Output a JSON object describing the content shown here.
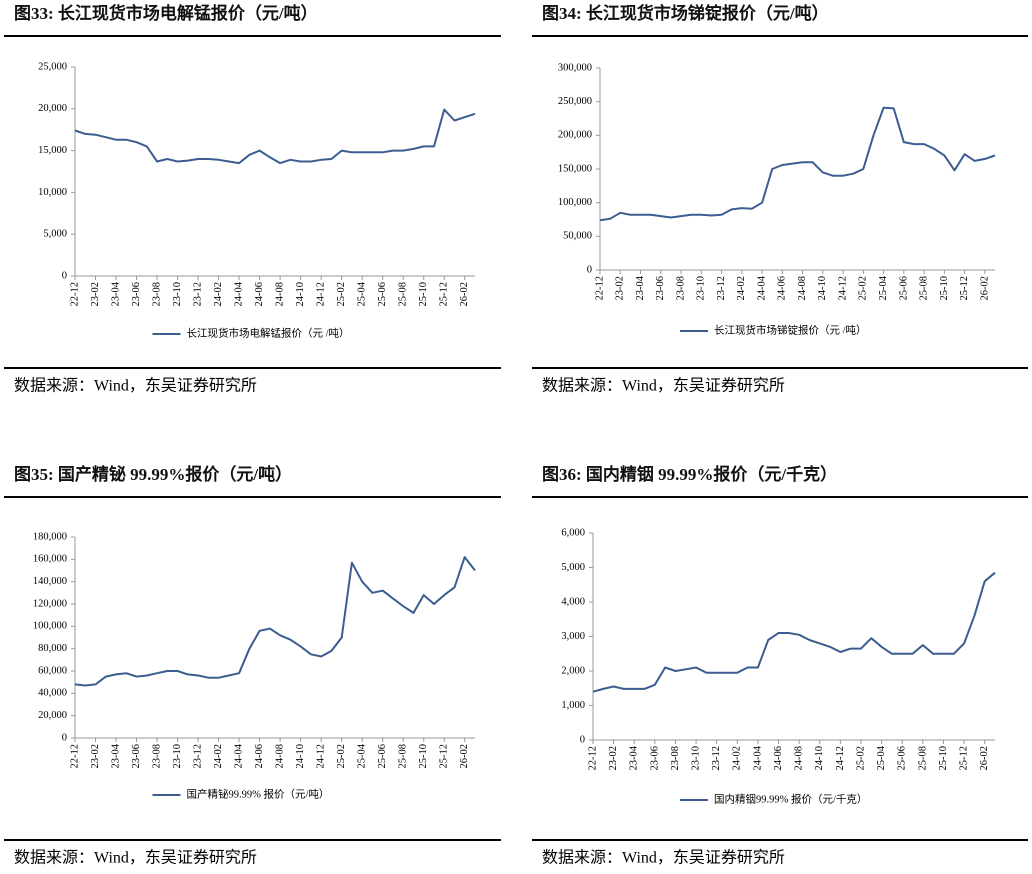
{
  "chart_data": [
    {
      "type": "line",
      "title": "图33:  长江现货市场电解锰报价（元/吨）",
      "source": "数据来源：Wind，东吴证券研究所",
      "categories": [
        "22-12",
        null,
        "23-02",
        null,
        "23-04",
        null,
        "23-06",
        null,
        "23-08",
        null,
        "23-10",
        null,
        "23-12",
        null,
        "24-02",
        null,
        "24-04",
        null,
        "24-06",
        null,
        "24-08",
        null,
        "24-10",
        null,
        "24-12",
        null,
        "25-02",
        null,
        "25-04",
        null,
        "25-06",
        null,
        "25-08",
        null,
        "25-10",
        null,
        "25-12",
        null,
        "26-02",
        null
      ],
      "series": [
        {
          "name": "长江现货市场电解锰报价（元 /吨）",
          "color": "#3b5d8f",
          "values": [
            17400,
            17000,
            16900,
            16600,
            16300,
            16300,
            16000,
            15500,
            13700,
            14000,
            13700,
            13800,
            14000,
            14000,
            13900,
            13700,
            13500,
            14500,
            15000,
            14200,
            13500,
            13900,
            13700,
            13700,
            13900,
            14000,
            15000,
            14800,
            14800,
            14800,
            14800,
            15000,
            15000,
            15200,
            15500,
            15500,
            19900,
            18600,
            19000,
            19400
          ]
        }
      ],
      "ylim": [
        0,
        25000
      ],
      "yticks": [
        0,
        {
          "value": 5000,
          "label": "5,000"
        },
        {
          "value": 10000,
          "label": "10,000"
        },
        {
          "value": 15000,
          "label": "15,000"
        },
        {
          "value": 20000,
          "label": "20,000"
        },
        {
          "value": 25000,
          "label": "25,000"
        }
      ],
      "grid": false,
      "legend": "bottom"
    },
    {
      "type": "line",
      "title": "图34:  长江现货市场锑锭报价（元/吨）",
      "source": "数据来源：Wind，东吴证券研究所",
      "categories": [
        "22-12",
        null,
        "23-02",
        null,
        "23-04",
        null,
        "23-06",
        null,
        "23-08",
        null,
        "23-10",
        null,
        "23-12",
        null,
        "24-02",
        null,
        "24-04",
        null,
        "24-06",
        null,
        "24-08",
        null,
        "24-10",
        null,
        "24-12",
        null,
        "25-02",
        null,
        "25-04",
        null,
        "25-06",
        null,
        "25-08",
        null,
        "25-10",
        null,
        "25-12",
        null,
        "26-02",
        null
      ],
      "series": [
        {
          "name": "长江现货市场锑锭报价（元 /吨）",
          "color": "#3b5d8f",
          "values": [
            74000,
            76000,
            85000,
            82000,
            82000,
            82000,
            80000,
            78000,
            80000,
            82000,
            82000,
            81000,
            82000,
            90000,
            92000,
            91000,
            100000,
            150000,
            156000,
            158000,
            160000,
            160000,
            145000,
            140000,
            140000,
            143000,
            150000,
            200000,
            241000,
            240000,
            190000,
            187000,
            187000,
            180000,
            170000,
            148000,
            172000,
            162000,
            165000,
            170000
          ]
        }
      ],
      "ylim": [
        0,
        300000
      ],
      "yticks": [
        0,
        {
          "value": 50000,
          "label": "50,000"
        },
        {
          "value": 100000,
          "label": "100,000"
        },
        {
          "value": 150000,
          "label": "150,000"
        },
        {
          "value": 200000,
          "label": "200,000"
        },
        {
          "value": 250000,
          "label": "250,000"
        },
        {
          "value": 300000,
          "label": "300,000"
        }
      ],
      "grid": false,
      "legend": "bottom"
    },
    {
      "type": "line",
      "title": "图35:  国产精铋 99.99%报价（元/吨）",
      "source": "数据来源：Wind，东吴证券研究所",
      "categories": [
        "22-12",
        null,
        "23-02",
        null,
        "23-04",
        null,
        "23-06",
        null,
        "23-08",
        null,
        "23-10",
        null,
        "23-12",
        null,
        "24-02",
        null,
        "24-04",
        null,
        "24-06",
        null,
        "24-08",
        null,
        "24-10",
        null,
        "24-12",
        null,
        "25-02",
        null,
        "25-04",
        null,
        "25-06",
        null,
        "25-08",
        null,
        "25-10",
        null,
        "25-12",
        null,
        "26-02",
        null
      ],
      "series": [
        {
          "name": "国产精铋99.99% 报价（元/吨）",
          "color": "#3b5d8f",
          "values": [
            48000,
            47000,
            48000,
            55000,
            57000,
            58000,
            55000,
            56000,
            58000,
            60000,
            60000,
            57000,
            56000,
            54000,
            54000,
            56000,
            58000,
            80000,
            96000,
            98000,
            92000,
            88000,
            82000,
            75000,
            73000,
            78000,
            90000,
            157000,
            140000,
            130000,
            132000,
            125000,
            118000,
            112000,
            128000,
            120000,
            128000,
            135000,
            162000,
            150000
          ]
        }
      ],
      "ylim": [
        0,
        180000
      ],
      "yticks": [
        0,
        {
          "value": 20000,
          "label": "20,000"
        },
        {
          "value": 40000,
          "label": "40,000"
        },
        {
          "value": 60000,
          "label": "60,000"
        },
        {
          "value": 80000,
          "label": "80,000"
        },
        {
          "value": 100000,
          "label": "100,000"
        },
        {
          "value": 120000,
          "label": "120,000"
        },
        {
          "value": 140000,
          "label": "140,000"
        },
        {
          "value": 160000,
          "label": "160,000"
        },
        {
          "value": 180000,
          "label": "180,000"
        }
      ],
      "grid": false,
      "legend": "bottom"
    },
    {
      "type": "line",
      "title": "图36:  国内精铟 99.99%报价（元/千克）",
      "source": "数据来源：Wind，东吴证券研究所",
      "categories": [
        "22-12",
        null,
        "23-02",
        null,
        "23-04",
        null,
        "23-06",
        null,
        "23-08",
        null,
        "23-10",
        null,
        "23-12",
        null,
        "24-02",
        null,
        "24-04",
        null,
        "24-06",
        null,
        "24-08",
        null,
        "24-10",
        null,
        "24-12",
        null,
        "25-02",
        null,
        "25-04",
        null,
        "25-06",
        null,
        "25-08",
        null,
        "25-10",
        null,
        "25-12",
        null,
        "26-02",
        null
      ],
      "series": [
        {
          "name": "国内精铟99.99% 报价（元/千克）",
          "color": "#3b5d8f",
          "values": [
            1400,
            1480,
            1550,
            1480,
            1480,
            1480,
            1600,
            2100,
            2000,
            2050,
            2100,
            1950,
            1950,
            1950,
            1950,
            2100,
            2100,
            2900,
            3100,
            3100,
            3050,
            2900,
            2800,
            2700,
            2550,
            2650,
            2650,
            2950,
            2700,
            2500,
            2500,
            2500,
            2750,
            2500,
            2500,
            2500,
            2800,
            3600,
            4600,
            4850
          ]
        }
      ],
      "ylim": [
        0,
        6000
      ],
      "yticks": [
        0,
        {
          "value": 1000,
          "label": "1,000"
        },
        {
          "value": 2000,
          "label": "2,000"
        },
        {
          "value": 3000,
          "label": "3,000"
        },
        {
          "value": 4000,
          "label": "4,000"
        },
        {
          "value": 5000,
          "label": "5,000"
        },
        {
          "value": 6000,
          "label": "6,000"
        }
      ],
      "grid": false,
      "legend": "bottom"
    }
  ]
}
